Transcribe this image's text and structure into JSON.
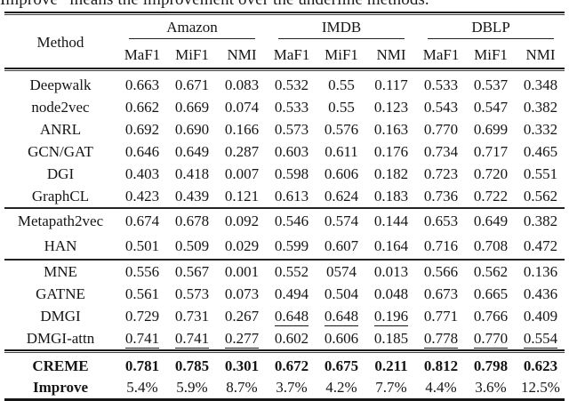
{
  "caption": "Improve” means the improvement over the underline methods.",
  "table": {
    "method_header": "Method",
    "groups": [
      {
        "label": "Amazon",
        "metrics": [
          "MaF1",
          "MiF1",
          "NMI"
        ]
      },
      {
        "label": "IMDB",
        "metrics": [
          "MaF1",
          "MiF1",
          "NMI"
        ]
      },
      {
        "label": "DBLP",
        "metrics": [
          "MaF1",
          "MiF1",
          "NMI"
        ]
      }
    ],
    "sections": [
      {
        "rows": [
          {
            "method": "Deepwalk",
            "values": [
              "0.663",
              "0.671",
              "0.083",
              "0.532",
              "0.55",
              "0.117",
              "0.533",
              "0.537",
              "0.348"
            ]
          },
          {
            "method": "node2vec",
            "values": [
              "0.662",
              "0.669",
              "0.074",
              "0.533",
              "0.55",
              "0.123",
              "0.543",
              "0.547",
              "0.382"
            ]
          },
          {
            "method": "ANRL",
            "values": [
              "0.692",
              "0.690",
              "0.166",
              "0.573",
              "0.576",
              "0.163",
              "0.770",
              "0.699",
              "0.332"
            ]
          },
          {
            "method": "GCN/GAT",
            "values": [
              "0.646",
              "0.649",
              "0.287",
              "0.603",
              "0.611",
              "0.176",
              "0.734",
              "0.717",
              "0.465"
            ]
          },
          {
            "method": "DGI",
            "values": [
              "0.403",
              "0.418",
              "0.007",
              "0.598",
              "0.606",
              "0.182",
              "0.723",
              "0.720",
              "0.551"
            ]
          },
          {
            "method": "GraphCL",
            "values": [
              "0.423",
              "0.439",
              "0.121",
              "0.613",
              "0.624",
              "0.183",
              "0.736",
              "0.722",
              "0.562"
            ]
          }
        ]
      },
      {
        "rows": [
          {
            "method": "Metapath2vec",
            "values": [
              "0.674",
              "0.678",
              "0.092",
              "0.546",
              "0.574",
              "0.144",
              "0.653",
              "0.649",
              "0.382"
            ]
          },
          {
            "method": "HAN",
            "values": [
              "0.501",
              "0.509",
              "0.029",
              "0.599",
              "0.607",
              "0.164",
              "0.716",
              "0.708",
              "0.472"
            ]
          }
        ]
      },
      {
        "rows": [
          {
            "method": "MNE",
            "values": [
              "0.556",
              "0.567",
              "0.001",
              "0.552",
              "0574",
              "0.013",
              "0.566",
              "0.562",
              "0.136"
            ]
          },
          {
            "method": "GATNE",
            "values": [
              "0.561",
              "0.573",
              "0.073",
              "0.494",
              "0.504",
              "0.048",
              "0.673",
              "0.665",
              "0.436"
            ]
          },
          {
            "method": "DMGI",
            "values": [
              "0.729",
              "0.731",
              "0.267",
              "0.648",
              "0.648",
              "0.196",
              "0.771",
              "0.766",
              "0.409"
            ],
            "underline": [
              3,
              4,
              5
            ]
          },
          {
            "method": "DMGI-attn",
            "values": [
              "0.741",
              "0.741",
              "0.277",
              "0.602",
              "0.606",
              "0.185",
              "0.778",
              "0.770",
              "0.554"
            ],
            "underline": [
              0,
              1,
              2,
              6,
              7,
              8
            ]
          }
        ]
      },
      {
        "rows": [
          {
            "method": "CREME",
            "bold": true,
            "values": [
              "0.781",
              "0.785",
              "0.301",
              "0.672",
              "0.675",
              "0.211",
              "0.812",
              "0.798",
              "0.623"
            ]
          },
          {
            "method": "Improve",
            "method_bold": true,
            "values": [
              "5.4%",
              "5.9%",
              "8.7%",
              "3.7%",
              "4.2%",
              "7.7%",
              "4.4%",
              "3.6%",
              "12.5%"
            ]
          }
        ]
      }
    ]
  }
}
